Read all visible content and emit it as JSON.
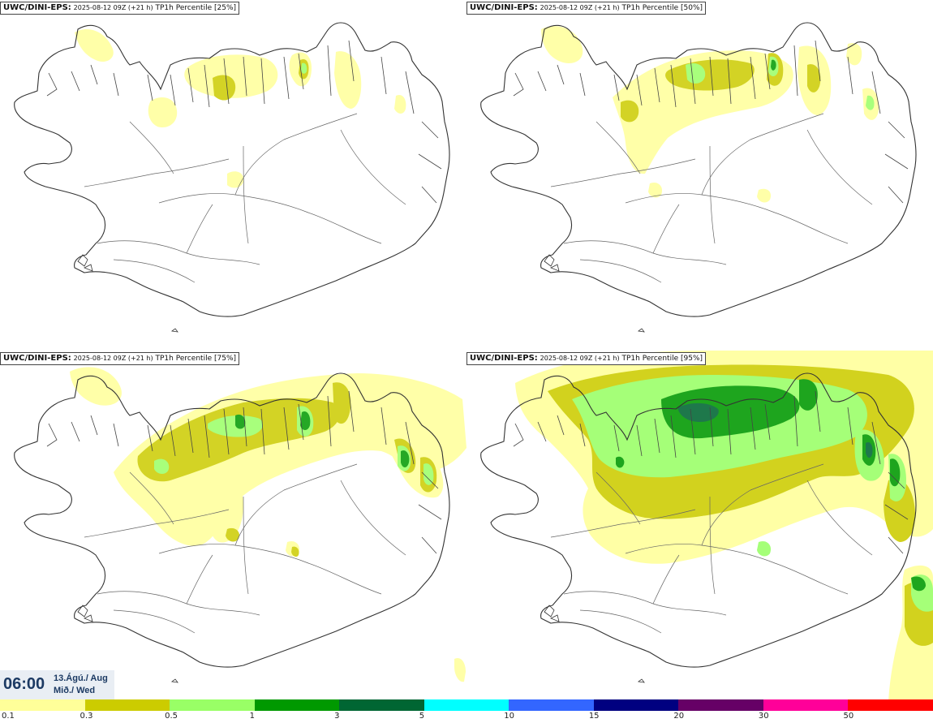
{
  "panels": [
    {
      "model": "UWC/DINI-EPS",
      "run": "2025-08-12 09Z (+21 h)",
      "variable": "TP1h Percentile [25%]"
    },
    {
      "model": "UWC/DINI-EPS",
      "run": "2025-08-12 09Z (+21 h)",
      "variable": "TP1h Percentile [50%]"
    },
    {
      "model": "UWC/DINI-EPS",
      "run": "2025-08-12 09Z (+21 h)",
      "variable": "TP1h Percentile [75%]"
    },
    {
      "model": "UWC/DINI-EPS",
      "run": "2025-08-12 09Z (+21 h)",
      "variable": "TP1h Percentile [95%]"
    }
  ],
  "valid_time": {
    "clock": "06:00",
    "date_line1": "13.Ágú./ Aug",
    "date_line2": "Mið./ Wed"
  },
  "legend": {
    "colors": [
      "#ffff99",
      "#cccc00",
      "#99ff66",
      "#009900",
      "#006633",
      "#00ffff",
      "#3366ff",
      "#000080",
      "#660066",
      "#ff0099",
      "#ff0000"
    ],
    "labels": [
      "0.1",
      "0.3",
      "0.5",
      "1",
      "3",
      "5",
      "10",
      "15",
      "20",
      "30",
      "50"
    ]
  },
  "map_colors": {
    "coast": "#333333",
    "roads": "#555555"
  }
}
